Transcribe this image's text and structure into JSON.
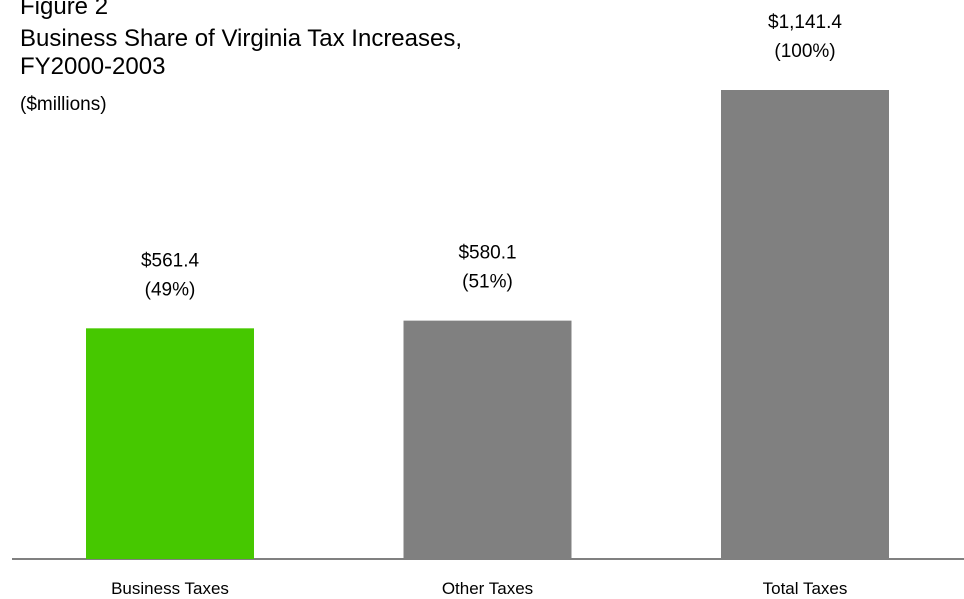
{
  "chart_data": {
    "type": "bar",
    "figure_label": "Figure 2",
    "title": [
      "Business Share of Virginia Tax Increases,",
      "FY2000-2003"
    ],
    "subtitle": "($millions)",
    "categories": [
      "Business Taxes",
      "Other Taxes",
      "Total Taxes"
    ],
    "values": [
      561.4,
      580.1,
      1141.4
    ],
    "value_labels": [
      "$561.4",
      "$580.1",
      "$1,141.4"
    ],
    "percent_values": [
      49,
      51,
      100
    ],
    "percent_labels": [
      "(49%)",
      "(51%)",
      "(100%)"
    ],
    "colors": [
      "#46c800",
      "#808080",
      "#808080"
    ]
  }
}
